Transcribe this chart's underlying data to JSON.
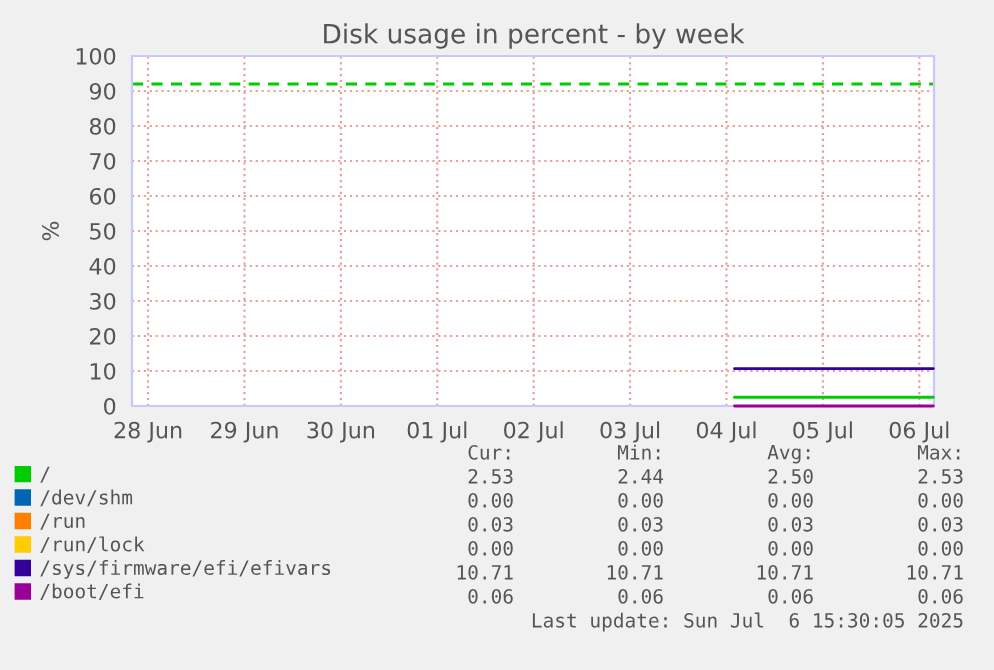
{
  "chart_data": {
    "type": "line",
    "title": "Disk usage in percent - by week",
    "ylabel": "%",
    "xlim": [
      "2025-06-28T08:00",
      "2025-07-06T15:40"
    ],
    "xticks": [
      {
        "value": "2025-06-28T12:00",
        "label": "28 Jun"
      },
      {
        "value": "2025-06-29T12:00",
        "label": "29 Jun"
      },
      {
        "value": "2025-06-30T12:00",
        "label": "30 Jun"
      },
      {
        "value": "2025-07-01T12:00",
        "label": "01 Jul"
      },
      {
        "value": "2025-07-02T12:00",
        "label": "02 Jul"
      },
      {
        "value": "2025-07-03T12:00",
        "label": "03 Jul"
      },
      {
        "value": "2025-07-04T12:00",
        "label": "04 Jul"
      },
      {
        "value": "2025-07-05T12:00",
        "label": "05 Jul"
      },
      {
        "value": "2025-07-06T12:00",
        "label": "06 Jul"
      }
    ],
    "ylim": [
      0,
      100
    ],
    "yticks": [
      0,
      10,
      20,
      30,
      40,
      50,
      60,
      70,
      80,
      90,
      100
    ],
    "grid": true,
    "legend": "bottom left",
    "line_style": "solid",
    "marker": "none",
    "series": [
      {
        "name": "/",
        "color": "#00cc00",
        "x": [
          "2025-07-04T14:00",
          "2025-07-06T15:30"
        ],
        "values": [
          2.5,
          2.5
        ]
      },
      {
        "name": "/dev/shm",
        "color": "#0066b3"
      },
      {
        "name": "/run",
        "color": "#ff8000"
      },
      {
        "name": "/run/lock",
        "color": "#ffcc00"
      },
      {
        "name": "/sys/firmware/efi/efivars",
        "color": "#330099",
        "x": [
          "2025-07-04T14:00",
          "2025-07-06T15:30"
        ],
        "values": [
          10.7,
          10.7
        ]
      },
      {
        "name": "/boot/efi",
        "color": "#990099",
        "x": [
          "2025-07-04T14:00",
          "2025-07-06T15:30"
        ],
        "values": [
          0,
          0
        ]
      }
    ],
    "ref_lines": [
      {
        "axis": "y",
        "value": 92,
        "label": null,
        "color": "#00cc00",
        "line_style": "dashed"
      }
    ],
    "annotations": [
      "Cur:",
      "Min:",
      "Avg:",
      "Max:",
      "2.53",
      "2.44",
      "2.50",
      "2.53",
      "0.00",
      "0.00",
      "0.00",
      "0.00",
      "0.03",
      "0.03",
      "0.03",
      "0.03",
      "0.00",
      "0.00",
      "0.00",
      "0.00",
      "10.71",
      "10.71",
      "10.71",
      "10.71",
      "0.06",
      "0.06",
      "0.06",
      "0.06",
      "Last update: Sun Jul  6 15:30:05 2025"
    ]
  }
}
